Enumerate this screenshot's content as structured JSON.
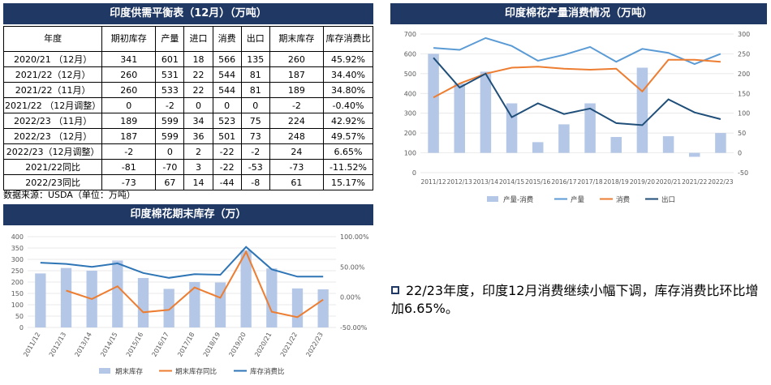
{
  "table": {
    "title": "印度供需平衡表（12月）（万吨）",
    "headers": [
      "年度",
      "期初库存",
      "产量",
      "进口",
      "消费",
      "出口",
      "期末库存",
      "库存消费比"
    ],
    "rows": [
      [
        "2020/21 （12月）",
        "341",
        "601",
        "18",
        "566",
        "135",
        "260",
        "45.92%"
      ],
      [
        "2021/22（12月）",
        "260",
        "531",
        "22",
        "544",
        "81",
        "187",
        "34.40%"
      ],
      [
        "2021/22（11月）",
        "260",
        "533",
        "22",
        "544",
        "81",
        "189",
        "34.80%"
      ],
      [
        "2021/22 （12月调整）",
        "0",
        "-2",
        "0",
        "0",
        "0",
        "-2",
        "-0.40%"
      ],
      [
        "2022/23 （11月）",
        "189",
        "599",
        "34",
        "523",
        "75",
        "224",
        "42.92%"
      ],
      [
        "2022/23 （12月）",
        "187",
        "599",
        "36",
        "501",
        "73",
        "248",
        "49.57%"
      ],
      [
        "2022/23（12月调整）",
        "-2",
        "0",
        "2",
        "-22",
        "-2",
        "24",
        "6.65%"
      ],
      [
        "2021/22同比",
        "-81",
        "-70",
        "3",
        "-22",
        "-53",
        "-73",
        "-11.52%"
      ],
      [
        "2022/23同比",
        "-73",
        "67",
        "14",
        "-44",
        "-8",
        "61",
        "15.17%"
      ]
    ],
    "source": "数据来源：USDA（单位：万吨）"
  },
  "note": {
    "text": "22/23年度，印度12月消费继续小幅下调，库存消费比环比增加6.65%。"
  },
  "chart_data": [
    {
      "type": "bar+line",
      "title": "印度棉花产量消费情况（万吨）",
      "categories": [
        "2011/12",
        "2012/13",
        "2013/14",
        "2014/15",
        "2015/16",
        "2016/17",
        "2017/18",
        "2018/19",
        "2019/20",
        "2020/21",
        "2021/22",
        "2022/23"
      ],
      "left_axis": {
        "min": 0,
        "max": 700,
        "ticks": [
          0,
          100,
          200,
          300,
          400,
          500,
          600,
          700
        ]
      },
      "right_axis": {
        "min": -50,
        "max": 300,
        "ticks": [
          -50,
          0,
          50,
          100,
          150,
          200,
          250,
          300
        ]
      },
      "series": [
        {
          "name": "产量-消费",
          "type": "bar",
          "axis": "right",
          "color": "#b4c7e7",
          "values": [
            250,
            175,
            205,
            125,
            27,
            72,
            125,
            40,
            215,
            42,
            -10,
            50
          ]
        },
        {
          "name": "产量",
          "type": "line",
          "axis": "left",
          "color": "#5b9bd5",
          "values": [
            630,
            620,
            680,
            640,
            565,
            595,
            635,
            560,
            625,
            605,
            548,
            600
          ]
        },
        {
          "name": "消费",
          "type": "line",
          "axis": "left",
          "color": "#ed7d31",
          "values": [
            380,
            450,
            500,
            530,
            535,
            525,
            520,
            525,
            410,
            570,
            570,
            560
          ]
        },
        {
          "name": "出口",
          "type": "line",
          "axis": "right",
          "color": "#1f4e79",
          "values": [
            240,
            165,
            200,
            90,
            125,
            98,
            112,
            75,
            70,
            135,
            102,
            85
          ]
        }
      ],
      "legend": "bottom"
    },
    {
      "type": "bar+line",
      "title": "印度棉花期末库存（万）",
      "categories": [
        "2011/12",
        "2012/13",
        "2013/14",
        "2014/15",
        "2015/16",
        "2016/17",
        "2017/18",
        "2018/19",
        "2019/20",
        "2020/21",
        "2021/22",
        "2022/23"
      ],
      "left_axis": {
        "min": 0,
        "max": 400,
        "ticks": [
          0,
          50,
          100,
          150,
          200,
          250,
          300,
          350,
          400
        ]
      },
      "right_axis": {
        "min": -50,
        "max": 100,
        "ticks": [
          "-50.00%",
          "0.00%",
          "50.00%",
          "100.00%"
        ]
      },
      "series": [
        {
          "name": "期末库存",
          "type": "bar",
          "axis": "left",
          "color": "#b4c7e7",
          "values": [
            238,
            262,
            250,
            295,
            218,
            170,
            200,
            198,
            340,
            260,
            172,
            168
          ]
        },
        {
          "name": "期末库存同比",
          "type": "line",
          "axis": "right",
          "color": "#ed7d31",
          "values": [
            null,
            11,
            -3,
            18,
            -25,
            -21,
            16,
            -1,
            75,
            -24,
            -33,
            -4
          ]
        },
        {
          "name": "库存消费比",
          "type": "line",
          "axis": "right",
          "color": "#2e75b6",
          "values": [
            57,
            55,
            50,
            56,
            40,
            32,
            38,
            37,
            83,
            46,
            34,
            34
          ]
        }
      ],
      "legend": "bottom"
    }
  ]
}
